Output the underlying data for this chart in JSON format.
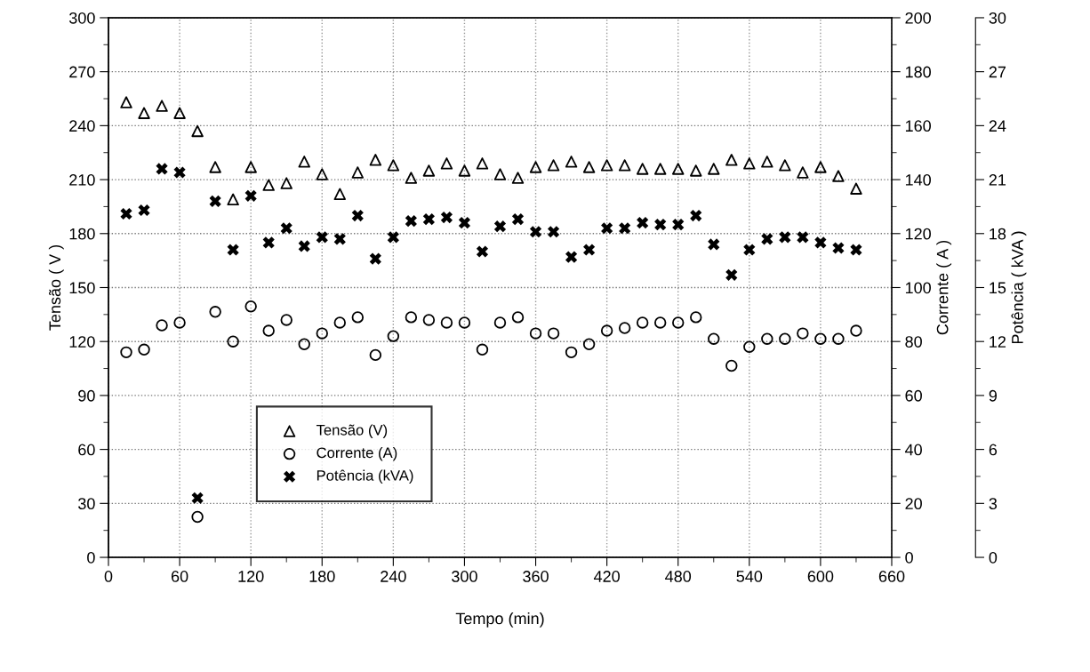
{
  "chart_data": {
    "type": "scatter",
    "xlabel": "Tempo (min)",
    "ylabel": "Tensão ( V )",
    "y2label": "Corrente ( A )",
    "y3label": "Potência ( kVA )",
    "x": [
      15,
      30,
      45,
      60,
      75,
      90,
      105,
      120,
      135,
      150,
      165,
      180,
      195,
      210,
      225,
      240,
      255,
      270,
      285,
      300,
      315,
      330,
      345,
      360,
      375,
      390,
      405,
      420,
      435,
      450,
      465,
      480,
      495,
      510,
      525,
      540,
      555,
      570,
      585,
      600,
      615,
      630
    ],
    "series": [
      {
        "name": "Tensão (V)",
        "color": "#000000",
        "marker": "triangle",
        "values": [
          253,
          247,
          251,
          247,
          237,
          217,
          199,
          217,
          207,
          208,
          220,
          213,
          202,
          214,
          221,
          218,
          211,
          215,
          219,
          215,
          219,
          213,
          211,
          217,
          218,
          220,
          217,
          218,
          218,
          216,
          216,
          216,
          215,
          216,
          221,
          219,
          220,
          218,
          214,
          217,
          212,
          205
        ]
      },
      {
        "name": "Corrente (A)",
        "color": "#000000",
        "marker": "circle",
        "axis": "y2",
        "values": [
          76,
          77,
          86,
          87,
          15,
          91,
          80,
          93,
          84,
          88,
          79,
          83,
          87,
          89,
          75,
          82,
          89,
          88,
          87,
          87,
          77,
          87,
          89,
          83,
          83,
          76,
          79,
          84,
          85,
          87,
          87,
          87,
          89,
          81,
          71,
          78,
          81,
          81,
          83,
          81,
          81,
          84
        ]
      },
      {
        "name": "Potência (kVA)",
        "color": "#000000",
        "marker": "cross",
        "axis": "y3",
        "values": [
          19.1,
          19.3,
          21.6,
          21.4,
          3.3,
          19.8,
          17.1,
          20.1,
          17.5,
          18.3,
          17.3,
          17.8,
          17.7,
          19.0,
          16.6,
          17.8,
          18.7,
          18.8,
          18.9,
          18.6,
          17.0,
          18.4,
          18.8,
          18.1,
          18.1,
          16.7,
          17.1,
          18.3,
          18.3,
          18.6,
          18.5,
          18.5,
          19.0,
          17.4,
          15.7,
          17.1,
          17.7,
          17.8,
          17.8,
          17.5,
          17.2,
          17.1
        ]
      }
    ],
    "xlim": [
      0,
      660
    ],
    "xticks": [
      0,
      60,
      120,
      180,
      240,
      300,
      360,
      420,
      480,
      540,
      600,
      660
    ],
    "ylim": [
      0,
      300
    ],
    "yticks": [
      0,
      30,
      60,
      90,
      120,
      150,
      180,
      210,
      240,
      270,
      300
    ],
    "y2lim": [
      0,
      200
    ],
    "y2ticks": [
      0,
      20,
      40,
      60,
      80,
      100,
      120,
      140,
      160,
      180,
      200
    ],
    "y3lim": [
      0,
      30
    ],
    "y3ticks": [
      0,
      3,
      6,
      9,
      12,
      15,
      18,
      21,
      24,
      27,
      30
    ],
    "grid": true,
    "legend": "bottom left"
  }
}
